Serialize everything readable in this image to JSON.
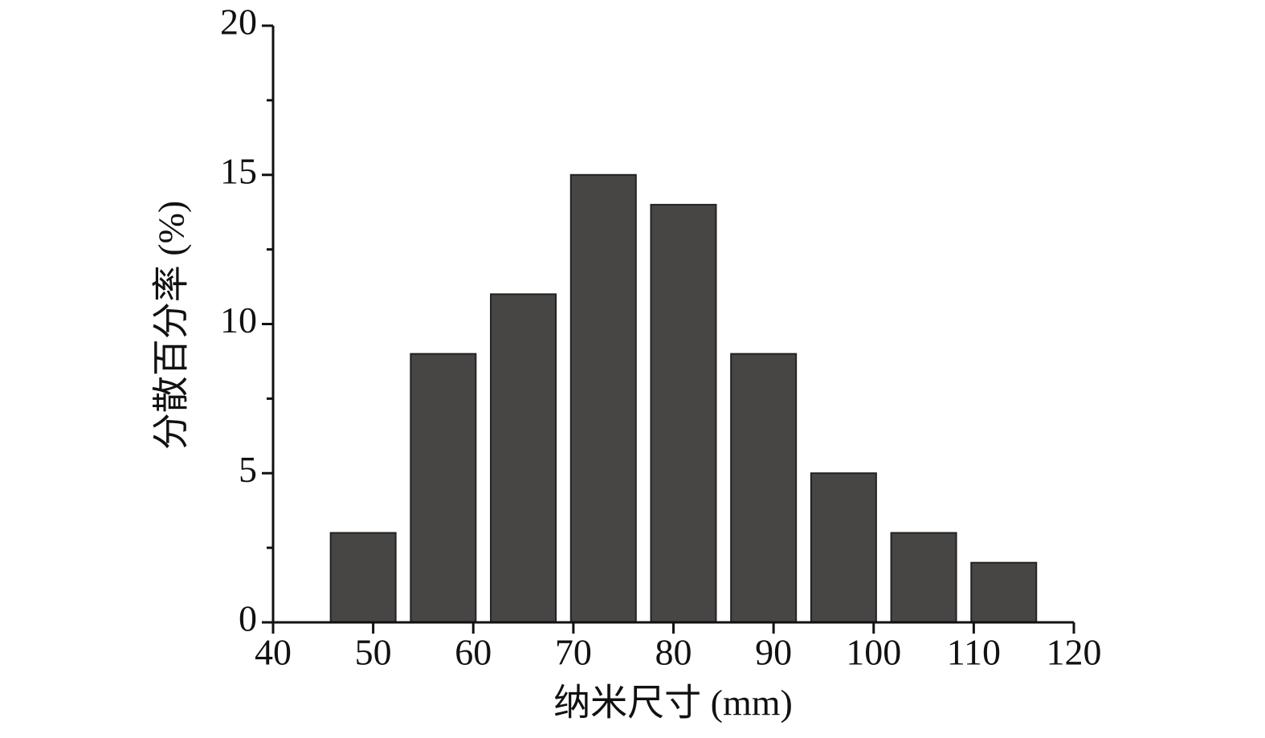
{
  "chart_data": {
    "type": "bar",
    "xlabel": "纳米尺寸 (mm)",
    "ylabel": "分散百分率 (%)",
    "x": [
      49,
      57,
      65,
      73,
      81,
      89,
      97,
      105,
      113
    ],
    "values": [
      3,
      9,
      11,
      15,
      14,
      9,
      5,
      3,
      2
    ],
    "bar_width": 6.5,
    "color": "#474645",
    "xlim": [
      40,
      120
    ],
    "xticks": [
      40,
      50,
      60,
      70,
      80,
      90,
      100,
      110,
      120
    ],
    "ylim": [
      0,
      20
    ],
    "yticks": [
      0,
      5,
      10,
      15,
      20
    ],
    "yminor_ticks": [
      2.5,
      7.5,
      12.5,
      17.5
    ],
    "grid": false
  }
}
